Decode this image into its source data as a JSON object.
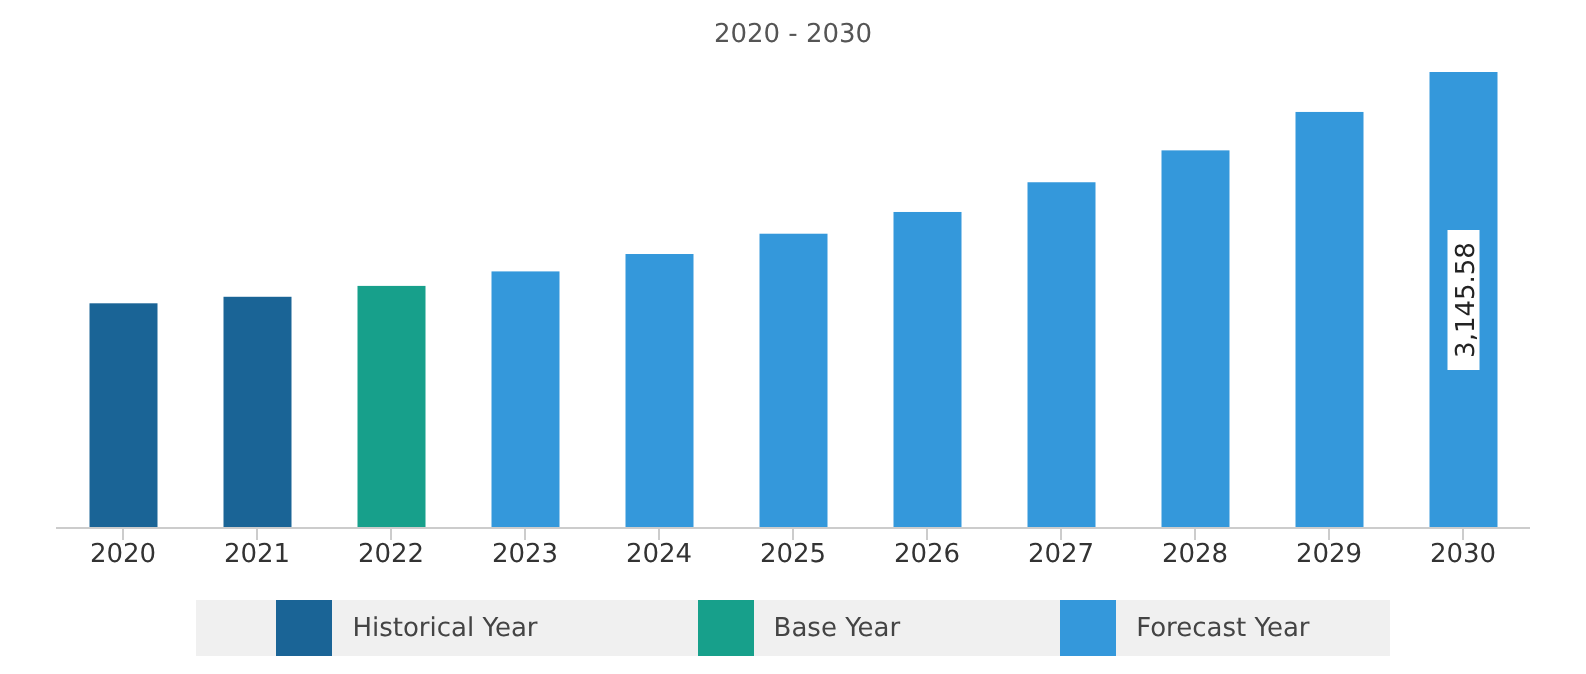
{
  "chart_data": {
    "type": "bar",
    "title": "2020 - 2030",
    "categories": [
      "2020",
      "2021",
      "2022",
      "2023",
      "2024",
      "2025",
      "2026",
      "2027",
      "2028",
      "2029",
      "2030"
    ],
    "stacked": true,
    "legend": "bottom",
    "tick_labels": "x",
    "series": [
      {
        "name": "Historical Year",
        "color": "#1a6496",
        "values": [
          1550,
          1595,
          null,
          null,
          null,
          null,
          null,
          null,
          null,
          null,
          null
        ]
      },
      {
        "name": "Base Year",
        "color": "#17a08b",
        "values": [
          null,
          null,
          1670,
          null,
          null,
          null,
          null,
          null,
          null,
          null,
          null
        ]
      },
      {
        "name": "Forecast Year",
        "color": "#3498db",
        "values": [
          null,
          null,
          null,
          1770,
          1890,
          2030,
          2180,
          2385,
          2605,
          2870,
          3145.58
        ],
        "value_labels": [
          null,
          null,
          null,
          null,
          null,
          null,
          null,
          null,
          null,
          null,
          "3,145.58"
        ]
      }
    ]
  }
}
